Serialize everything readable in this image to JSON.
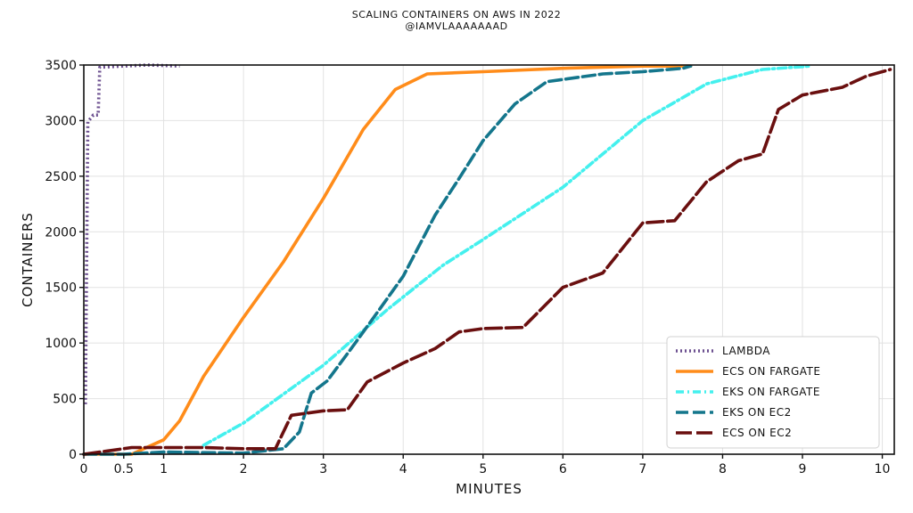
{
  "chart_data": {
    "type": "line",
    "title": "SCALING CONTAINERS ON AWS IN 2022",
    "subtitle": "@IAMVLAAAAAAAD",
    "xlabel": "MINUTES",
    "ylabel": "CONTAINERS",
    "xlim": [
      0,
      10.15
    ],
    "ylim": [
      0,
      3500
    ],
    "x_ticks": [
      {
        "v": 0,
        "label": "0"
      },
      {
        "v": 0.5,
        "label": "0.5"
      },
      {
        "v": 1,
        "label": "1"
      },
      {
        "v": 2,
        "label": "2"
      },
      {
        "v": 3,
        "label": "3"
      },
      {
        "v": 4,
        "label": "4"
      },
      {
        "v": 5,
        "label": "5"
      },
      {
        "v": 6,
        "label": "6"
      },
      {
        "v": 7,
        "label": "7"
      },
      {
        "v": 8,
        "label": "8"
      },
      {
        "v": 9,
        "label": "9"
      },
      {
        "v": 10,
        "label": "10"
      }
    ],
    "y_ticks": [
      0,
      500,
      1000,
      1500,
      2000,
      2500,
      3000,
      3500
    ],
    "grid": true,
    "legend_position": "bottom-right",
    "series": [
      {
        "name": "LAMBDA",
        "color": "#6b4f8f",
        "dash": "dotted",
        "points": [
          [
            0.02,
            450
          ],
          [
            0.05,
            2990
          ],
          [
            0.12,
            3050
          ],
          [
            0.18,
            3050
          ],
          [
            0.2,
            3480
          ],
          [
            0.5,
            3490
          ],
          [
            0.8,
            3500
          ],
          [
            1.2,
            3490
          ]
        ]
      },
      {
        "name": "ECS ON FARGATE",
        "color": "#ff8c1a",
        "dash": "solid",
        "points": [
          [
            0,
            0
          ],
          [
            0.6,
            0
          ],
          [
            1,
            130
          ],
          [
            1.2,
            300
          ],
          [
            1.5,
            700
          ],
          [
            2,
            1230
          ],
          [
            2.5,
            1730
          ],
          [
            3,
            2300
          ],
          [
            3.5,
            2920
          ],
          [
            3.9,
            3280
          ],
          [
            4.3,
            3420
          ],
          [
            5,
            3440
          ],
          [
            6,
            3470
          ],
          [
            7,
            3490
          ],
          [
            7.6,
            3490
          ]
        ]
      },
      {
        "name": "EKS ON FARGATE",
        "color": "#44f0ee",
        "dash": "dashdot",
        "points": [
          [
            1.5,
            80
          ],
          [
            2,
            280
          ],
          [
            3,
            800
          ],
          [
            3.8,
            1300
          ],
          [
            4.5,
            1700
          ],
          [
            5,
            1930
          ],
          [
            6,
            2400
          ],
          [
            7,
            3000
          ],
          [
            7.8,
            3330
          ],
          [
            8.5,
            3460
          ],
          [
            9.1,
            3490
          ]
        ]
      },
      {
        "name": "EKS ON EC2",
        "color": "#14768c",
        "dash": "dashed",
        "points": [
          [
            0,
            0
          ],
          [
            0.5,
            0
          ],
          [
            1,
            20
          ],
          [
            2,
            10
          ],
          [
            2.5,
            50
          ],
          [
            2.7,
            200
          ],
          [
            2.85,
            550
          ],
          [
            3.05,
            660
          ],
          [
            3.4,
            1000
          ],
          [
            3.7,
            1300
          ],
          [
            4,
            1600
          ],
          [
            4.4,
            2150
          ],
          [
            4.7,
            2480
          ],
          [
            5,
            2820
          ],
          [
            5.4,
            3150
          ],
          [
            5.8,
            3350
          ],
          [
            6.5,
            3420
          ],
          [
            7,
            3440
          ],
          [
            7.5,
            3470
          ],
          [
            7.6,
            3490
          ]
        ]
      },
      {
        "name": "ECS ON EC2",
        "color": "#6a0f0f",
        "dash": "longdash",
        "points": [
          [
            0,
            0
          ],
          [
            0.3,
            30
          ],
          [
            0.6,
            60
          ],
          [
            1,
            60
          ],
          [
            1.5,
            60
          ],
          [
            2,
            50
          ],
          [
            2.4,
            50
          ],
          [
            2.6,
            350
          ],
          [
            3,
            390
          ],
          [
            3.3,
            400
          ],
          [
            3.55,
            650
          ],
          [
            4,
            820
          ],
          [
            4.4,
            950
          ],
          [
            4.7,
            1100
          ],
          [
            5,
            1130
          ],
          [
            5.5,
            1140
          ],
          [
            6,
            1500
          ],
          [
            6.5,
            1630
          ],
          [
            7,
            2080
          ],
          [
            7.4,
            2100
          ],
          [
            7.8,
            2450
          ],
          [
            8.2,
            2640
          ],
          [
            8.5,
            2700
          ],
          [
            8.7,
            3100
          ],
          [
            9,
            3230
          ],
          [
            9.5,
            3300
          ],
          [
            9.8,
            3400
          ],
          [
            10.1,
            3460
          ]
        ]
      }
    ]
  }
}
